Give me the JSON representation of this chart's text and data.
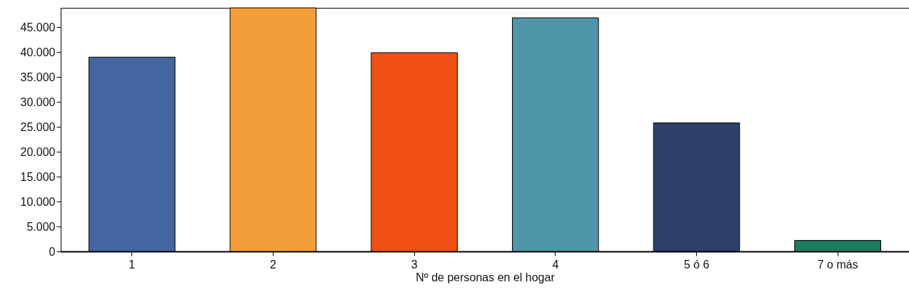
{
  "chart_data": {
    "type": "bar",
    "xlabel": "Nº de personas en el hogar",
    "categories": [
      "1",
      "2",
      "3",
      "4",
      "5 ó 6",
      "7 o más"
    ],
    "values": [
      39000,
      48900,
      39900,
      46900,
      25800,
      2200
    ],
    "colors": [
      "#4466a0",
      "#f29e38",
      "#f04f16",
      "#4f96a8",
      "#2e406a",
      "#1f7a60"
    ],
    "ylim": [
      0,
      48900
    ],
    "yticks": [
      {
        "value": 0,
        "label": "0"
      },
      {
        "value": 5000,
        "label": "5.000"
      },
      {
        "value": 10000,
        "label": "10.000"
      },
      {
        "value": 15000,
        "label": "15.000"
      },
      {
        "value": 20000,
        "label": "20.000"
      },
      {
        "value": 25000,
        "label": "25.000"
      },
      {
        "value": 30000,
        "label": "30.000"
      },
      {
        "value": 35000,
        "label": "35.000"
      },
      {
        "value": 40000,
        "label": "40.000"
      },
      {
        "value": 45000,
        "label": "45.000"
      }
    ],
    "grid": false
  }
}
